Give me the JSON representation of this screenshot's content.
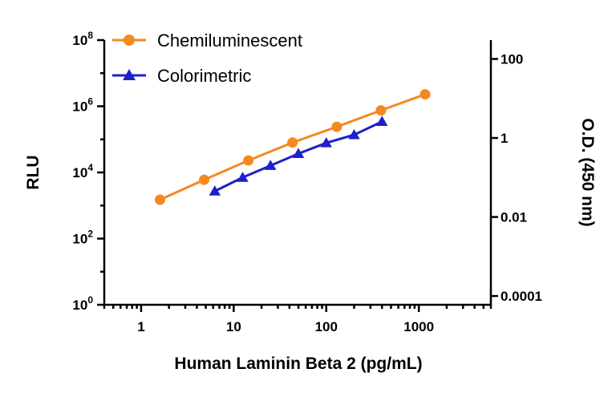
{
  "chart_data": {
    "type": "line",
    "xlabel": "Human Laminin Beta 2 (pg/mL)",
    "ylabel_left": "RLU",
    "ylabel_right": "O.D. (450 nm)",
    "x_scale": "log",
    "y_left_scale": "log",
    "y_right_scale": "log",
    "xlim": [
      0.4,
      6000
    ],
    "ylim_left": [
      1,
      100000000
    ],
    "ylim_right": [
      6e-05,
      300
    ],
    "x_ticks": [
      {
        "value": 1,
        "label": "1"
      },
      {
        "value": 10,
        "label": "10"
      },
      {
        "value": 100,
        "label": "100"
      },
      {
        "value": 1000,
        "label": "1000"
      }
    ],
    "y_left_ticks": [
      {
        "value": 1,
        "base": "10",
        "exp": "0"
      },
      {
        "value": 100,
        "base": "10",
        "exp": "2"
      },
      {
        "value": 10000,
        "base": "10",
        "exp": "4"
      },
      {
        "value": 1000000,
        "base": "10",
        "exp": "6"
      },
      {
        "value": 100000000,
        "base": "10",
        "exp": "8"
      }
    ],
    "y_right_ticks": [
      {
        "value": 0.0001,
        "label": "0.0001"
      },
      {
        "value": 0.01,
        "label": "0.01"
      },
      {
        "value": 1,
        "label": "1"
      },
      {
        "value": 100,
        "label": "100"
      }
    ],
    "grid": false,
    "legend_position": "top-left",
    "series": [
      {
        "name": "Chemiluminescent",
        "axis": "left",
        "color": "#f5891f",
        "marker": "circle",
        "x": [
          1.6,
          4.8,
          14.4,
          43.2,
          130,
          390,
          1170
        ],
        "y": [
          1500,
          6000,
          23000,
          80000,
          240000,
          750000,
          2300000
        ]
      },
      {
        "name": "Colorimetric",
        "axis": "right",
        "color": "#1f1fcc",
        "marker": "triangle",
        "x": [
          6.25,
          12.5,
          25,
          50,
          100,
          200,
          400
        ],
        "y": [
          0.045,
          0.1,
          0.2,
          0.4,
          0.75,
          1.2,
          2.6
        ]
      }
    ]
  }
}
